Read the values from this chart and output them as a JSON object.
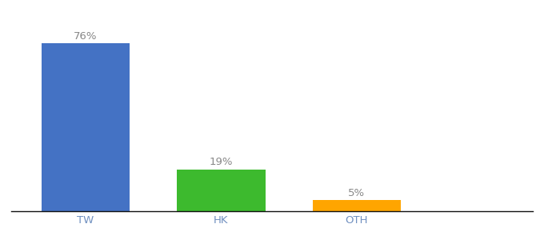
{
  "categories": [
    "TW",
    "HK",
    "OTH"
  ],
  "values": [
    76,
    19,
    5
  ],
  "bar_colors": [
    "#4472c4",
    "#3dba2e",
    "#ffa500"
  ],
  "label_texts": [
    "76%",
    "19%",
    "5%"
  ],
  "ylim": [
    0,
    88
  ],
  "background_color": "#ffffff",
  "label_color": "#888888",
  "tick_color": "#7090c0",
  "bar_width": 0.65,
  "label_fontsize": 9.5,
  "tick_fontsize": 9.5,
  "figsize": [
    6.8,
    3.0
  ],
  "dpi": 100
}
